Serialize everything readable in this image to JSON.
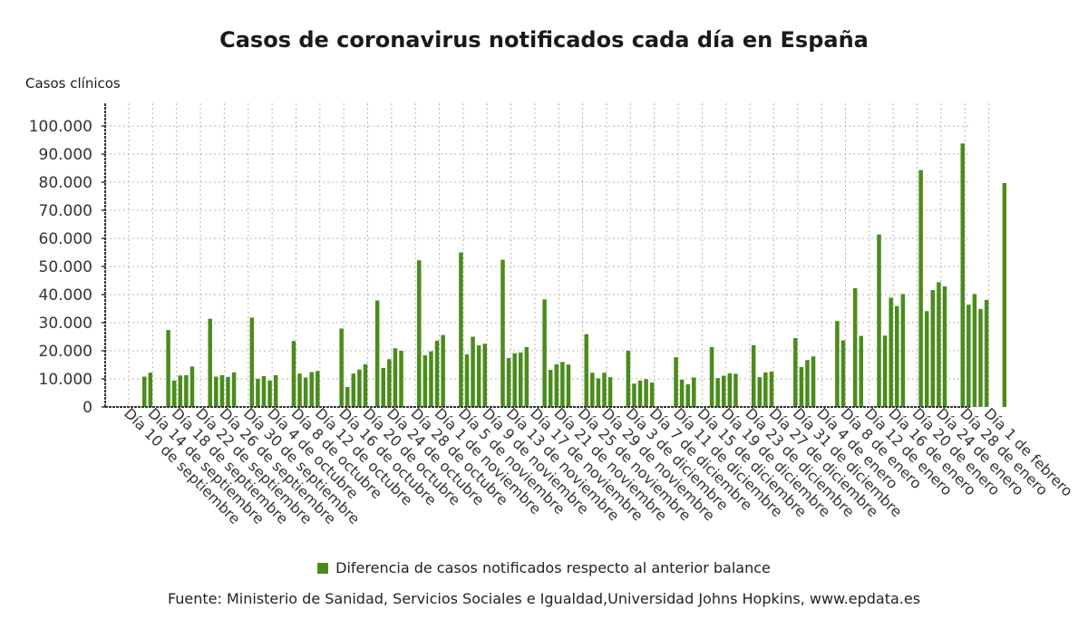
{
  "chart_data": {
    "type": "bar",
    "title": "Casos de coronavirus notificados cada día en España",
    "ylabel": "Casos clínicos",
    "xlabel": "",
    "ylim": [
      0,
      100000
    ],
    "yticks": [
      0,
      10000,
      20000,
      30000,
      40000,
      50000,
      60000,
      70000,
      80000,
      90000,
      100000
    ],
    "ytick_labels": [
      "0",
      "10.000",
      "20.000",
      "30.000",
      "40.000",
      "50.000",
      "60.000",
      "70.000",
      "80.000",
      "90.000",
      "100.000"
    ],
    "grid": true,
    "legend_position": "bottom",
    "x_tick_labels": [
      "Día 10 de septiembre",
      "Día 14 de septiembre",
      "Día 18 de septiembre",
      "Día 22 de septiembre",
      "Día 26 de septiembre",
      "Día 30 de septiembre",
      "Día 4 de octubre",
      "Día 8 de octubre",
      "Día 12 de octubre",
      "Día 16 de octubre",
      "Día 20 de octubre",
      "Día 24 de octubre",
      "Día 28 de octubre",
      "Día 1 de noviembre",
      "Día 5 de noviembre",
      "Día 9 de noviembre",
      "Día 13 de noviembre",
      "Día 17 de noviembre",
      "Día 21 de noviembre",
      "Día 25 de noviembre",
      "Día 29 de noviembre",
      "Día 3 de diciembre",
      "Día 7 de diciembre",
      "Día 11 de diciembre",
      "Día 15 de diciembre",
      "Día 19 de diciembre",
      "Día 23 de diciembre",
      "Día 27 de diciembre",
      "Día 31 de diciembre",
      "Día 4 de enero",
      "Día 8 de enero",
      "Día 12 de enero",
      "Día 16 de enero",
      "Día 20 de enero",
      "Día 24 de enero",
      "Día 28 de enero",
      "Día 1 de febrero"
    ],
    "series": [
      {
        "name": "Diferencia de casos notificados respecto al anterior balance",
        "color": "#4a8c1c",
        "points": [
          {
            "day": 1,
            "value": 10800
          },
          {
            "day": 2,
            "value": 12200
          },
          {
            "day": 5,
            "value": 27400
          },
          {
            "day": 6,
            "value": 9400
          },
          {
            "day": 7,
            "value": 11200
          },
          {
            "day": 8,
            "value": 11300
          },
          {
            "day": 9,
            "value": 14400
          },
          {
            "day": 12,
            "value": 31400
          },
          {
            "day": 13,
            "value": 10800
          },
          {
            "day": 14,
            "value": 11300
          },
          {
            "day": 15,
            "value": 10700
          },
          {
            "day": 16,
            "value": 12300
          },
          {
            "day": 19,
            "value": 31800
          },
          {
            "day": 20,
            "value": 10000
          },
          {
            "day": 21,
            "value": 11000
          },
          {
            "day": 22,
            "value": 9400
          },
          {
            "day": 23,
            "value": 11300
          },
          {
            "day": 26,
            "value": 23500
          },
          {
            "day": 27,
            "value": 11900
          },
          {
            "day": 28,
            "value": 10500
          },
          {
            "day": 29,
            "value": 12400
          },
          {
            "day": 30,
            "value": 12800
          },
          {
            "day": 34,
            "value": 27900
          },
          {
            "day": 35,
            "value": 7100
          },
          {
            "day": 36,
            "value": 11900
          },
          {
            "day": 37,
            "value": 13300
          },
          {
            "day": 38,
            "value": 15200
          },
          {
            "day": 40,
            "value": 37900
          },
          {
            "day": 41,
            "value": 13900
          },
          {
            "day": 42,
            "value": 17000
          },
          {
            "day": 43,
            "value": 20900
          },
          {
            "day": 44,
            "value": 20000
          },
          {
            "day": 47,
            "value": 52200
          },
          {
            "day": 48,
            "value": 18400
          },
          {
            "day": 49,
            "value": 19800
          },
          {
            "day": 50,
            "value": 23600
          },
          {
            "day": 51,
            "value": 25600
          },
          {
            "day": 54,
            "value": 55000
          },
          {
            "day": 55,
            "value": 18700
          },
          {
            "day": 56,
            "value": 25000
          },
          {
            "day": 57,
            "value": 21900
          },
          {
            "day": 58,
            "value": 22500
          },
          {
            "day": 61,
            "value": 52400
          },
          {
            "day": 62,
            "value": 17400
          },
          {
            "day": 63,
            "value": 19100
          },
          {
            "day": 64,
            "value": 19400
          },
          {
            "day": 65,
            "value": 21300
          },
          {
            "day": 68,
            "value": 38300
          },
          {
            "day": 69,
            "value": 13200
          },
          {
            "day": 70,
            "value": 15200
          },
          {
            "day": 71,
            "value": 16000
          },
          {
            "day": 72,
            "value": 15100
          },
          {
            "day": 75,
            "value": 25900
          },
          {
            "day": 76,
            "value": 12200
          },
          {
            "day": 77,
            "value": 10200
          },
          {
            "day": 78,
            "value": 12200
          },
          {
            "day": 79,
            "value": 10600
          },
          {
            "day": 82,
            "value": 20000
          },
          {
            "day": 83,
            "value": 8300
          },
          {
            "day": 84,
            "value": 9400
          },
          {
            "day": 85,
            "value": 9900
          },
          {
            "day": 86,
            "value": 8700
          },
          {
            "day": 90,
            "value": 17700
          },
          {
            "day": 91,
            "value": 9700
          },
          {
            "day": 92,
            "value": 8100
          },
          {
            "day": 93,
            "value": 10500
          },
          {
            "day": 96,
            "value": 21300
          },
          {
            "day": 97,
            "value": 10300
          },
          {
            "day": 98,
            "value": 11100
          },
          {
            "day": 99,
            "value": 12000
          },
          {
            "day": 100,
            "value": 11800
          },
          {
            "day": 103,
            "value": 22000
          },
          {
            "day": 104,
            "value": 10600
          },
          {
            "day": 105,
            "value": 12300
          },
          {
            "day": 106,
            "value": 12600
          },
          {
            "day": 110,
            "value": 24500
          },
          {
            "day": 111,
            "value": 14200
          },
          {
            "day": 112,
            "value": 16700
          },
          {
            "day": 113,
            "value": 18000
          },
          {
            "day": 117,
            "value": 30600
          },
          {
            "day": 118,
            "value": 23700
          },
          {
            "day": 120,
            "value": 42300
          },
          {
            "day": 121,
            "value": 25300
          },
          {
            "day": 124,
            "value": 61400
          },
          {
            "day": 125,
            "value": 25400
          },
          {
            "day": 126,
            "value": 38900
          },
          {
            "day": 127,
            "value": 35900
          },
          {
            "day": 128,
            "value": 40200
          },
          {
            "day": 131,
            "value": 84300
          },
          {
            "day": 132,
            "value": 34100
          },
          {
            "day": 133,
            "value": 41600
          },
          {
            "day": 134,
            "value": 44400
          },
          {
            "day": 135,
            "value": 42900
          },
          {
            "day": 138,
            "value": 93800
          },
          {
            "day": 139,
            "value": 36400
          },
          {
            "day": 140,
            "value": 40200
          },
          {
            "day": 141,
            "value": 34900
          },
          {
            "day": 142,
            "value": 38100
          },
          {
            "day": 145,
            "value": 79700
          }
        ]
      }
    ]
  },
  "legend": {
    "label": "Diferencia de casos notificados respecto al anterior balance"
  },
  "source": "Fuente: Ministerio de Sanidad, Servicios Sociales e Igualdad,Universidad Johns Hopkins, www.epdata.es"
}
